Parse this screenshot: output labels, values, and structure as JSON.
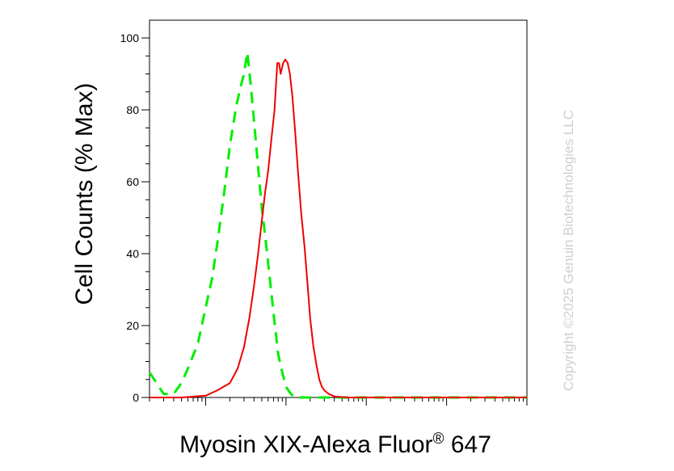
{
  "chart_data": {
    "type": "line",
    "title": "",
    "xlabel": "Myosin XIX-Alexa Fluor",
    "xlabel_registered": "®",
    "xlabel_suffix": " 647",
    "ylabel": "Cell Counts (% Max)",
    "xscale": "log",
    "xlim": [
      2,
      100000
    ],
    "ylim": [
      0,
      100
    ],
    "yticks": [
      0,
      20,
      40,
      60,
      80,
      100
    ],
    "grid": false,
    "legend": "none",
    "series": [
      {
        "color": "#00ee00",
        "style": "dashed",
        "points": [
          [
            2,
            7
          ],
          [
            3,
            1
          ],
          [
            4,
            1
          ],
          [
            5,
            4
          ],
          [
            6,
            8
          ],
          [
            8,
            15
          ],
          [
            10,
            25
          ],
          [
            12,
            33
          ],
          [
            14,
            43
          ],
          [
            17,
            57
          ],
          [
            20,
            70
          ],
          [
            24,
            81
          ],
          [
            27,
            86
          ],
          [
            30,
            90
          ],
          [
            33,
            96
          ],
          [
            36,
            88
          ],
          [
            40,
            77
          ],
          [
            45,
            64
          ],
          [
            50,
            53
          ],
          [
            57,
            42
          ],
          [
            65,
            30
          ],
          [
            72,
            21
          ],
          [
            80,
            12
          ],
          [
            90,
            7
          ],
          [
            100,
            3
          ],
          [
            115,
            1
          ],
          [
            130,
            0
          ],
          [
            200,
            0
          ],
          [
            100000,
            0
          ]
        ]
      },
      {
        "color": "#ee0000",
        "style": "solid",
        "points": [
          [
            2,
            0
          ],
          [
            5,
            0
          ],
          [
            10,
            0.5
          ],
          [
            14,
            2
          ],
          [
            20,
            4
          ],
          [
            25,
            8
          ],
          [
            30,
            14
          ],
          [
            35,
            22
          ],
          [
            40,
            31
          ],
          [
            45,
            40
          ],
          [
            50,
            49
          ],
          [
            55,
            57
          ],
          [
            60,
            63
          ],
          [
            66,
            72
          ],
          [
            72,
            80
          ],
          [
            78,
            93
          ],
          [
            82,
            93
          ],
          [
            86,
            90
          ],
          [
            92,
            93
          ],
          [
            98,
            94
          ],
          [
            105,
            93
          ],
          [
            112,
            90
          ],
          [
            120,
            84
          ],
          [
            130,
            74
          ],
          [
            142,
            62
          ],
          [
            155,
            51
          ],
          [
            170,
            42
          ],
          [
            185,
            32
          ],
          [
            200,
            22
          ],
          [
            220,
            14
          ],
          [
            240,
            9
          ],
          [
            260,
            5
          ],
          [
            280,
            3
          ],
          [
            300,
            2
          ],
          [
            340,
            1
          ],
          [
            400,
            0.3
          ],
          [
            600,
            0
          ],
          [
            100000,
            0
          ]
        ]
      }
    ]
  },
  "watermark": "Copyright ©2025 Genuin Biotechnologies LLC"
}
